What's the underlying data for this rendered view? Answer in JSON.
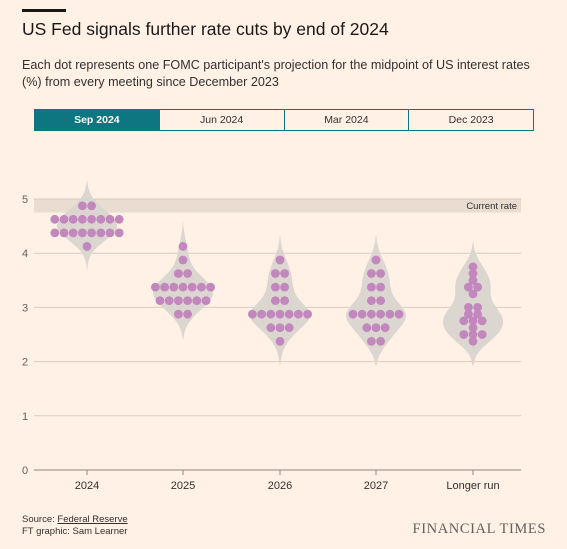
{
  "header": {
    "title": "US Fed signals further rate cuts by end of 2024",
    "subtitle": "Each dot represents one FOMC participant's projection for the midpoint of US interest rates (%) from every meeting since December 2023"
  },
  "tabs": [
    {
      "label": "Sep 2024",
      "active": true
    },
    {
      "label": "Jun 2024",
      "active": false
    },
    {
      "label": "Mar 2024",
      "active": false
    },
    {
      "label": "Dec 2023",
      "active": false
    }
  ],
  "footer": {
    "source_prefix": "Source: ",
    "source_link": "Federal Reserve",
    "credit": "FT graphic: Sam Learner",
    "logo": "FINANCIAL TIMES"
  },
  "colors": {
    "background": "#fff1e5",
    "dot": "#c287bd",
    "violin": "#dcd6d1",
    "current_rate_band": "#e9ddd2",
    "gridline": "#d8ccc2",
    "tab_active": "#0d7680"
  },
  "chart_data": {
    "type": "scatter",
    "title": "US Fed signals further rate cuts by end of 2024",
    "ylabel": "",
    "ylim": [
      0,
      5
    ],
    "yticks": [
      0,
      1,
      2,
      3,
      4,
      5
    ],
    "grid": true,
    "current_rate": {
      "label": "Current rate",
      "low": 4.75,
      "high": 5.0
    },
    "categories": [
      "2024",
      "2025",
      "2026",
      "2027",
      "Longer run"
    ],
    "projections": [
      {
        "category": "2024",
        "values": [
          4.875,
          4.875,
          4.625,
          4.625,
          4.625,
          4.625,
          4.625,
          4.625,
          4.625,
          4.625,
          4.375,
          4.375,
          4.375,
          4.375,
          4.375,
          4.375,
          4.375,
          4.375,
          4.125
        ]
      },
      {
        "category": "2025",
        "values": [
          4.125,
          3.875,
          3.625,
          3.625,
          3.375,
          3.375,
          3.375,
          3.375,
          3.375,
          3.375,
          3.375,
          3.125,
          3.125,
          3.125,
          3.125,
          3.125,
          3.125,
          2.875,
          2.875
        ]
      },
      {
        "category": "2026",
        "values": [
          3.875,
          3.625,
          3.625,
          3.375,
          3.375,
          3.125,
          3.125,
          2.875,
          2.875,
          2.875,
          2.875,
          2.875,
          2.875,
          2.875,
          2.625,
          2.625,
          2.625,
          2.375
        ]
      },
      {
        "category": "2027",
        "values": [
          3.875,
          3.625,
          3.625,
          3.375,
          3.375,
          3.125,
          3.125,
          2.875,
          2.875,
          2.875,
          2.875,
          2.875,
          2.875,
          2.625,
          2.625,
          2.625,
          2.375,
          2.375
        ]
      },
      {
        "category": "Longer run",
        "values": [
          3.75,
          3.625,
          3.5,
          3.375,
          3.375,
          3.25,
          3.0,
          3.0,
          2.875,
          2.875,
          2.75,
          2.75,
          2.75,
          2.625,
          2.5,
          2.5,
          2.5,
          2.375
        ]
      }
    ]
  }
}
